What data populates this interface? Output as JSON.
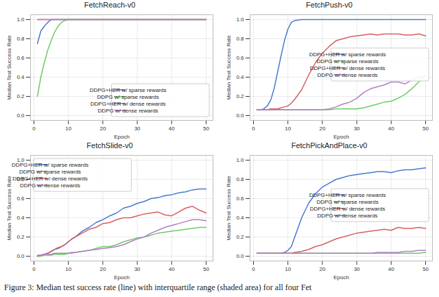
{
  "caption": "Figure 3: Median test success rate (line) with interquartile range (shaded area) for all four Fet",
  "chart_data": [
    {
      "type": "line",
      "title": "FetchReach-v0",
      "x_label": "Epoch",
      "y_label": "Median Test Success Rate",
      "xlim": [
        -1,
        52
      ],
      "xticks": [
        0,
        10,
        20,
        30,
        40,
        50
      ],
      "ylim": [
        -0.05,
        1.05
      ],
      "yticks": [
        {
          "value": 0,
          "label": "0.0"
        },
        {
          "value": 0.2,
          "label": "0.2"
        },
        {
          "value": 0.4,
          "label": "0.4"
        },
        {
          "value": 0.6,
          "label": "0.6"
        },
        {
          "value": 0.8,
          "label": "0.8"
        },
        {
          "value": 1,
          "label": "1.0"
        }
      ],
      "grid": true,
      "legend": "lower right",
      "x": [
        1,
        2,
        3,
        4,
        5,
        6,
        7,
        8,
        9,
        10,
        11,
        12,
        14,
        16,
        18,
        20,
        22,
        24,
        26,
        28,
        30,
        32,
        34,
        36,
        38,
        40,
        42,
        44,
        46,
        48,
        50
      ],
      "series": [
        {
          "name": "DDPG+HER w/ sparse rewards",
          "color": "#4878cf",
          "values": [
            0.75,
            0.88,
            0.93,
            0.97,
            1,
            1,
            1,
            1,
            1,
            1,
            1,
            1,
            1,
            1,
            1,
            1,
            1,
            1,
            1,
            1,
            1,
            1,
            1,
            1,
            1,
            1,
            1,
            1,
            1,
            1,
            1
          ]
        },
        {
          "name": "DDPG w/ sparse rewards",
          "color": "#6acc65",
          "values": [
            0.2,
            0.4,
            0.55,
            0.68,
            0.78,
            0.87,
            0.93,
            0.97,
            0.99,
            1,
            1,
            1,
            1,
            1,
            1,
            1,
            1,
            1,
            1,
            1,
            1,
            1,
            1,
            1,
            1,
            1,
            1,
            1,
            1,
            1,
            1
          ]
        },
        {
          "name": "DDPG+HER w/ dense rewards",
          "color": "#d65f5f",
          "values": [
            1,
            1,
            1,
            1,
            1,
            1,
            1,
            1,
            1,
            1,
            1,
            1,
            1,
            1,
            1,
            1,
            1,
            1,
            1,
            1,
            1,
            1,
            1,
            1,
            1,
            1,
            1,
            1,
            1,
            1,
            1
          ]
        },
        {
          "name": "DDPG w/ dense rewards",
          "color": "#b47cc7",
          "values": [
            1,
            1,
            1,
            1,
            1,
            1,
            1,
            1,
            1,
            1,
            1,
            1,
            1,
            1,
            1,
            1,
            1,
            1,
            1,
            1,
            1,
            1,
            1,
            1,
            1,
            1,
            1,
            1,
            1,
            1,
            1
          ]
        }
      ]
    },
    {
      "type": "line",
      "title": "FetchPush-v0",
      "x_label": "Epoch",
      "y_label": "Median Test Success Rate",
      "xlim": [
        -1,
        52
      ],
      "xticks": [
        0,
        10,
        20,
        30,
        40,
        50
      ],
      "ylim": [
        -0.05,
        1.05
      ],
      "yticks": [
        {
          "value": 0,
          "label": "0.0"
        },
        {
          "value": 0.2,
          "label": "0.2"
        },
        {
          "value": 0.4,
          "label": "0.4"
        },
        {
          "value": 0.6,
          "label": "0.6"
        },
        {
          "value": 0.8,
          "label": "0.8"
        },
        {
          "value": 1,
          "label": "1.0"
        }
      ],
      "grid": true,
      "legend": "center right",
      "x": [
        1,
        2,
        3,
        4,
        5,
        6,
        7,
        8,
        9,
        10,
        11,
        12,
        14,
        16,
        18,
        20,
        22,
        24,
        26,
        28,
        30,
        32,
        34,
        36,
        38,
        40,
        42,
        44,
        46,
        48,
        50
      ],
      "series": [
        {
          "name": "DDPG+HER w/ sparse rewards",
          "color": "#4878cf",
          "values": [
            0.06,
            0.06,
            0.07,
            0.1,
            0.16,
            0.28,
            0.45,
            0.62,
            0.78,
            0.9,
            0.97,
            0.99,
            1,
            1,
            1,
            1,
            1,
            1,
            1,
            1,
            1,
            1,
            1,
            1,
            1,
            1,
            1,
            1,
            1,
            1,
            1
          ]
        },
        {
          "name": "DDPG w/ sparse rewards",
          "color": "#6acc65",
          "values": [
            0.06,
            0.06,
            0.06,
            0.06,
            0.06,
            0.06,
            0.06,
            0.06,
            0.06,
            0.06,
            0.06,
            0.06,
            0.06,
            0.06,
            0.06,
            0.06,
            0.06,
            0.07,
            0.07,
            0.07,
            0.07,
            0.08,
            0.1,
            0.12,
            0.14,
            0.15,
            0.18,
            0.22,
            0.28,
            0.35,
            0.42
          ]
        },
        {
          "name": "DDPG+HER w/ dense rewards",
          "color": "#d65f5f",
          "values": [
            0.06,
            0.06,
            0.06,
            0.06,
            0.07,
            0.07,
            0.07,
            0.08,
            0.09,
            0.1,
            0.13,
            0.17,
            0.27,
            0.42,
            0.55,
            0.65,
            0.72,
            0.78,
            0.8,
            0.82,
            0.83,
            0.84,
            0.85,
            0.84,
            0.85,
            0.85,
            0.85,
            0.84,
            0.84,
            0.85,
            0.83
          ]
        },
        {
          "name": "DDPG w/ dense rewards",
          "color": "#b47cc7",
          "values": [
            0.06,
            0.06,
            0.06,
            0.06,
            0.06,
            0.06,
            0.06,
            0.06,
            0.06,
            0.06,
            0.06,
            0.06,
            0.06,
            0.06,
            0.06,
            0.06,
            0.07,
            0.09,
            0.12,
            0.14,
            0.18,
            0.24,
            0.28,
            0.3,
            0.32,
            0.35,
            0.35,
            0.33,
            0.37,
            0.4,
            0.41
          ]
        }
      ]
    },
    {
      "type": "line",
      "title": "FetchSlide-v0",
      "x_label": "Epoch",
      "y_label": "Median Test Success Rate",
      "xlim": [
        -1,
        52
      ],
      "xticks": [
        0,
        10,
        20,
        30,
        40,
        50
      ],
      "ylim": [
        -0.05,
        1.05
      ],
      "yticks": [
        {
          "value": 0,
          "label": "0.0"
        },
        {
          "value": 0.2,
          "label": "0.2"
        },
        {
          "value": 0.4,
          "label": "0.4"
        },
        {
          "value": 0.6,
          "label": "0.6"
        },
        {
          "value": 0.8,
          "label": "0.8"
        },
        {
          "value": 1,
          "label": "1.0"
        }
      ],
      "grid": true,
      "legend": "upper left",
      "x": [
        1,
        2,
        3,
        4,
        5,
        6,
        7,
        8,
        9,
        10,
        11,
        12,
        14,
        16,
        18,
        20,
        22,
        24,
        26,
        28,
        30,
        32,
        34,
        36,
        38,
        40,
        42,
        44,
        46,
        48,
        50
      ],
      "series": [
        {
          "name": "DDPG+HER w/ sparse rewards",
          "color": "#4878cf",
          "values": [
            0,
            0.01,
            0.02,
            0.03,
            0.05,
            0.07,
            0.08,
            0.1,
            0.12,
            0.15,
            0.18,
            0.2,
            0.26,
            0.3,
            0.35,
            0.38,
            0.42,
            0.45,
            0.5,
            0.52,
            0.55,
            0.57,
            0.6,
            0.61,
            0.63,
            0.64,
            0.66,
            0.67,
            0.69,
            0.7,
            0.7
          ]
        },
        {
          "name": "DDPG w/ sparse rewards",
          "color": "#6acc65",
          "values": [
            0,
            0,
            0.01,
            0.01,
            0.01,
            0.02,
            0.02,
            0.02,
            0.02,
            0.03,
            0.03,
            0.04,
            0.05,
            0.06,
            0.08,
            0.1,
            0.1,
            0.12,
            0.15,
            0.17,
            0.19,
            0.2,
            0.22,
            0.24,
            0.25,
            0.26,
            0.27,
            0.28,
            0.29,
            0.3,
            0.3
          ]
        },
        {
          "name": "DDPG+HER w/ dense rewards",
          "color": "#d65f5f",
          "values": [
            0,
            0.01,
            0.02,
            0.03,
            0.05,
            0.07,
            0.09,
            0.1,
            0.12,
            0.15,
            0.18,
            0.2,
            0.24,
            0.28,
            0.3,
            0.34,
            0.35,
            0.38,
            0.4,
            0.4,
            0.42,
            0.44,
            0.45,
            0.46,
            0.43,
            0.42,
            0.46,
            0.5,
            0.52,
            0.48,
            0.45
          ]
        },
        {
          "name": "DDPG w/ dense rewards",
          "color": "#b47cc7",
          "values": [
            0.01,
            0.01,
            0.02,
            0.02,
            0.02,
            0.03,
            0.03,
            0.03,
            0.03,
            0.03,
            0.04,
            0.04,
            0.05,
            0.06,
            0.07,
            0.08,
            0.09,
            0.1,
            0.12,
            0.15,
            0.18,
            0.2,
            0.24,
            0.27,
            0.3,
            0.32,
            0.34,
            0.36,
            0.38,
            0.38,
            0.37
          ]
        }
      ]
    },
    {
      "type": "line",
      "title": "FetchPickAndPlace-v0",
      "x_label": "Epoch",
      "y_label": "Median Test Success Rate",
      "xlim": [
        -1,
        52
      ],
      "xticks": [
        0,
        10,
        20,
        30,
        40,
        50
      ],
      "ylim": [
        -0.05,
        1.05
      ],
      "yticks": [
        {
          "value": 0,
          "label": "0.0"
        },
        {
          "value": 0.2,
          "label": "0.2"
        },
        {
          "value": 0.4,
          "label": "0.4"
        },
        {
          "value": 0.6,
          "label": "0.6"
        },
        {
          "value": 0.8,
          "label": "0.8"
        },
        {
          "value": 1,
          "label": "1.0"
        }
      ],
      "grid": true,
      "legend": "center right",
      "x": [
        1,
        2,
        3,
        4,
        5,
        6,
        7,
        8,
        9,
        10,
        11,
        12,
        14,
        16,
        18,
        20,
        22,
        24,
        26,
        28,
        30,
        32,
        34,
        36,
        38,
        40,
        42,
        44,
        46,
        48,
        50
      ],
      "series": [
        {
          "name": "DDPG+HER w/ sparse rewards",
          "color": "#4878cf",
          "values": [
            0.03,
            0.03,
            0.03,
            0.03,
            0.03,
            0.03,
            0.03,
            0.03,
            0.04,
            0.06,
            0.1,
            0.2,
            0.4,
            0.55,
            0.65,
            0.72,
            0.76,
            0.8,
            0.82,
            0.84,
            0.85,
            0.86,
            0.87,
            0.88,
            0.88,
            0.87,
            0.89,
            0.9,
            0.9,
            0.91,
            0.92
          ]
        },
        {
          "name": "DDPG w/ sparse rewards",
          "color": "#6acc65",
          "values": [
            0.03,
            0.03,
            0.03,
            0.03,
            0.03,
            0.03,
            0.03,
            0.03,
            0.03,
            0.03,
            0.03,
            0.03,
            0.03,
            0.03,
            0.03,
            0.03,
            0.03,
            0.03,
            0.03,
            0.03,
            0.03,
            0.03,
            0.03,
            0.03,
            0.03,
            0.03,
            0.03,
            0.03,
            0.03,
            0.03,
            0.04
          ]
        },
        {
          "name": "DDPG+HER w/ dense rewards",
          "color": "#d65f5f",
          "values": [
            0.03,
            0.03,
            0.03,
            0.03,
            0.03,
            0.03,
            0.03,
            0.03,
            0.03,
            0.03,
            0.03,
            0.04,
            0.05,
            0.07,
            0.1,
            0.12,
            0.15,
            0.18,
            0.2,
            0.22,
            0.24,
            0.25,
            0.26,
            0.27,
            0.28,
            0.27,
            0.3,
            0.29,
            0.29,
            0.3,
            0.29
          ]
        },
        {
          "name": "DDPG w/ dense rewards",
          "color": "#b47cc7",
          "values": [
            0.03,
            0.03,
            0.03,
            0.03,
            0.03,
            0.03,
            0.03,
            0.03,
            0.03,
            0.03,
            0.03,
            0.03,
            0.03,
            0.03,
            0.03,
            0.03,
            0.03,
            0.03,
            0.03,
            0.03,
            0.03,
            0.03,
            0.03,
            0.04,
            0.04,
            0.04,
            0.04,
            0.05,
            0.05,
            0.06,
            0.06
          ]
        }
      ]
    }
  ]
}
